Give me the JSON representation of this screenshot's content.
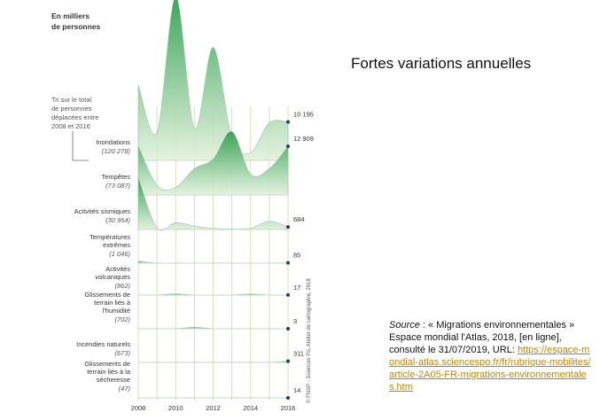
{
  "slide": {
    "title": "Fortes variations annuelles",
    "source_label": "Source",
    "source_text": " : « Migrations environnementales » Espace mondial l'Atlas, 2018, [en ligne], consulté le 31/07/2019, URL: ",
    "source_url": "https://espace-mondial-atlas.sciencespo.fr/fr/rubrique-mobilites/article-2A05-FR-migrations-environnementales.htm"
  },
  "chart_data": {
    "type": "area",
    "unit_label": "En milliers\nde personnes",
    "sort_note": "Tri sur le total\nde personnes\ndéplacées entre\n2008 et 2016",
    "copyright": "© FNSP - Sciences Po, Atelier de cartographie, 2018",
    "x": [
      2008,
      2009,
      2010,
      2011,
      2012,
      2013,
      2014,
      2015,
      2016
    ],
    "xticks": [
      "2008",
      "2010",
      "2012",
      "2014",
      "2016"
    ],
    "colors": {
      "fill_top": "#2e9e4f",
      "fill_bottom": "#e4f2de",
      "grid": "#d8d4a8",
      "dot": "#1f3f66"
    },
    "series": [
      {
        "name": "Inondations",
        "total": "(120 278)",
        "last_label": "10 195",
        "values": [
          20000,
          7500,
          43500,
          8500,
          30000,
          6000,
          2000,
          10000,
          10195
        ]
      },
      {
        "name": "Tempêtes",
        "total": "(73 087)",
        "last_label": "12 909",
        "values": [
          13000,
          2500,
          2000,
          7000,
          9500,
          16800,
          5500,
          7000,
          12909
        ]
      },
      {
        "name": "Activités sismiques",
        "total": "(30 954)",
        "last_label": "684",
        "values": [
          13800,
          400,
          1800,
          900,
          300,
          100,
          300,
          2200,
          684
        ]
      },
      {
        "name": "Températures extrêmes",
        "total": "(1 046)",
        "last_label": "85",
        "values": [
          600,
          20,
          20,
          20,
          20,
          20,
          20,
          20,
          85
        ]
      },
      {
        "name": "Activités volcaniques",
        "total": "(862)",
        "last_label": "17",
        "values": [
          10,
          10,
          300,
          10,
          10,
          10,
          250,
          10,
          17
        ]
      },
      {
        "name": "Glissements de terrain liés à l'humidité",
        "total": "(702)",
        "last_label": "3",
        "values": [
          10,
          10,
          10,
          400,
          10,
          10,
          10,
          10,
          3
        ]
      },
      {
        "name": "Incendies naturels",
        "total": "(673)",
        "last_label": "311",
        "values": [
          10,
          10,
          10,
          10,
          10,
          10,
          10,
          10,
          311
        ]
      },
      {
        "name": "Glissements de terrain liés à la sécheresse",
        "total": "(47)",
        "last_label": "14",
        "values": [
          5,
          5,
          5,
          5,
          5,
          5,
          5,
          5,
          14
        ]
      }
    ]
  }
}
